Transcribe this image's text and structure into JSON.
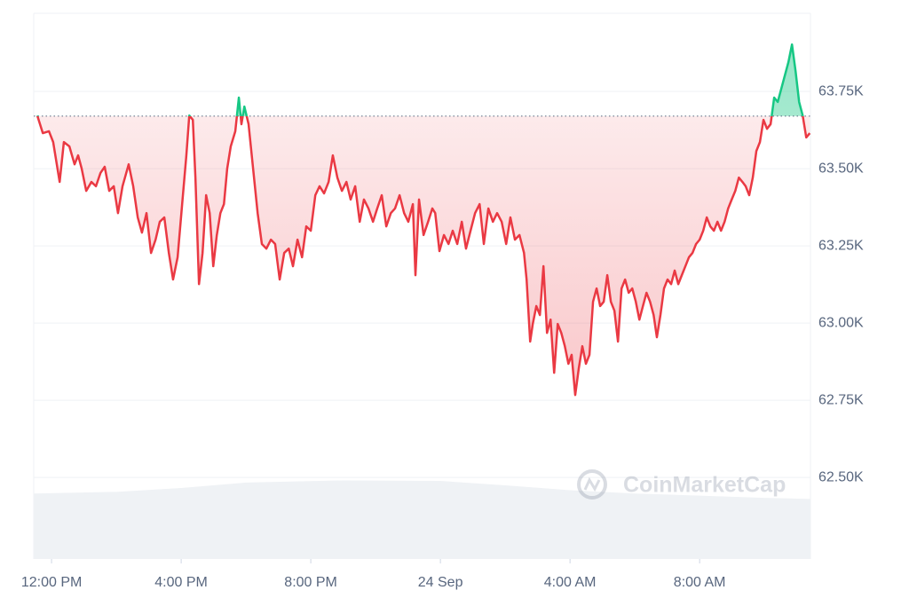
{
  "chart_data": {
    "type": "line",
    "watermark": "CoinMarketCap",
    "xlim": [
      -0.55,
      23.42
    ],
    "xticks": [
      {
        "value": 0,
        "label": "12:00 PM"
      },
      {
        "value": 4,
        "label": "4:00 PM"
      },
      {
        "value": 8,
        "label": "8:00 PM"
      },
      {
        "value": 12,
        "label": "24 Sep"
      },
      {
        "value": 16,
        "label": "4:00 AM"
      },
      {
        "value": 20,
        "label": "8:00 AM"
      }
    ],
    "ylim": [
      62236,
      64003
    ],
    "yticks": [
      {
        "value": 62500,
        "label": "62.50K"
      },
      {
        "value": 62750,
        "label": "62.75K"
      },
      {
        "value": 63000,
        "label": "63.00K"
      },
      {
        "value": 63250,
        "label": "63.25K"
      },
      {
        "value": 63500,
        "label": "63.50K"
      },
      {
        "value": 63750,
        "label": "63.75K"
      }
    ],
    "baseline": 63670,
    "grid": true,
    "color_up": "#16c784",
    "color_down": "#ea3943",
    "x": [
      -0.44,
      -0.27,
      -0.08,
      0.05,
      0.25,
      0.38,
      0.55,
      0.71,
      0.82,
      0.93,
      1.07,
      1.23,
      1.37,
      1.51,
      1.64,
      1.78,
      1.92,
      2.05,
      2.19,
      2.38,
      2.52,
      2.66,
      2.79,
      2.93,
      3.07,
      3.21,
      3.34,
      3.48,
      3.62,
      3.75,
      3.89,
      4.03,
      4.16,
      4.25,
      4.36,
      4.44,
      4.55,
      4.66,
      4.77,
      4.88,
      4.99,
      5.1,
      5.21,
      5.32,
      5.42,
      5.53,
      5.67,
      5.78,
      5.86,
      5.95,
      6.08,
      6.22,
      6.36,
      6.49,
      6.63,
      6.77,
      6.9,
      7.04,
      7.18,
      7.32,
      7.45,
      7.59,
      7.73,
      7.86,
      8.0,
      8.14,
      8.27,
      8.41,
      8.55,
      8.68,
      8.82,
      8.96,
      9.1,
      9.23,
      9.37,
      9.51,
      9.64,
      9.78,
      9.92,
      10.05,
      10.19,
      10.33,
      10.47,
      10.6,
      10.74,
      10.88,
      11.01,
      11.15,
      11.23,
      11.34,
      11.48,
      11.62,
      11.75,
      11.84,
      11.97,
      12.11,
      12.25,
      12.38,
      12.52,
      12.66,
      12.79,
      12.93,
      13.07,
      13.21,
      13.34,
      13.48,
      13.62,
      13.75,
      13.89,
      14.03,
      14.16,
      14.3,
      14.44,
      14.58,
      14.66,
      14.77,
      14.85,
      14.96,
      15.07,
      15.18,
      15.29,
      15.4,
      15.51,
      15.62,
      15.73,
      15.84,
      15.95,
      16.05,
      16.16,
      16.27,
      16.38,
      16.49,
      16.6,
      16.71,
      16.82,
      16.93,
      17.04,
      17.15,
      17.26,
      17.37,
      17.48,
      17.59,
      17.7,
      17.81,
      17.92,
      18.03,
      18.14,
      18.25,
      18.36,
      18.47,
      18.58,
      18.68,
      18.79,
      18.9,
      19.01,
      19.12,
      19.23,
      19.34,
      19.45,
      19.56,
      19.67,
      19.78,
      19.89,
      20.0,
      20.11,
      20.22,
      20.33,
      20.44,
      20.55,
      20.66,
      20.77,
      20.88,
      20.99,
      21.1,
      21.21,
      21.32,
      21.42,
      21.53,
      21.64,
      21.75,
      21.86,
      21.97,
      22.08,
      22.19,
      22.3,
      22.41,
      22.52,
      22.63,
      22.74,
      22.85,
      22.96,
      23.07,
      23.18,
      23.29,
      23.4
    ],
    "values": [
      63672,
      63615,
      63621,
      63586,
      63457,
      63586,
      63572,
      63514,
      63543,
      63500,
      63428,
      63457,
      63443,
      63486,
      63506,
      63428,
      63443,
      63356,
      63443,
      63514,
      63443,
      63342,
      63293,
      63356,
      63227,
      63270,
      63328,
      63342,
      63227,
      63141,
      63213,
      63385,
      63543,
      63672,
      63658,
      63471,
      63126,
      63227,
      63414,
      63356,
      63184,
      63285,
      63356,
      63385,
      63500,
      63572,
      63621,
      63730,
      63644,
      63701,
      63644,
      63500,
      63356,
      63256,
      63241,
      63270,
      63256,
      63141,
      63227,
      63241,
      63184,
      63270,
      63213,
      63313,
      63299,
      63414,
      63443,
      63420,
      63457,
      63543,
      63471,
      63428,
      63457,
      63400,
      63443,
      63328,
      63400,
      63371,
      63328,
      63371,
      63414,
      63313,
      63356,
      63371,
      63414,
      63356,
      63328,
      63385,
      63155,
      63400,
      63285,
      63328,
      63371,
      63356,
      63233,
      63285,
      63256,
      63299,
      63256,
      63328,
      63241,
      63299,
      63356,
      63385,
      63256,
      63371,
      63328,
      63356,
      63328,
      63256,
      63342,
      63270,
      63285,
      63227,
      63141,
      62940,
      62997,
      63055,
      63026,
      63184,
      62968,
      63011,
      62839,
      62997,
      62968,
      62925,
      62868,
      62897,
      62767,
      62853,
      62925,
      62868,
      62897,
      63069,
      63112,
      63055,
      63069,
      63155,
      63069,
      63040,
      62940,
      63112,
      63141,
      63098,
      63112,
      63069,
      63011,
      63055,
      63098,
      63069,
      63026,
      62954,
      63026,
      63112,
      63141,
      63126,
      63170,
      63126,
      63155,
      63184,
      63213,
      63227,
      63256,
      63270,
      63299,
      63342,
      63313,
      63299,
      63328,
      63299,
      63328,
      63371,
      63400,
      63428,
      63471,
      63457,
      63443,
      63414,
      63471,
      63557,
      63586,
      63658,
      63629,
      63644,
      63730,
      63716,
      63759,
      63802,
      63845,
      63902,
      63816,
      63716,
      63672,
      63601,
      63615
    ],
    "volume": {
      "x": [
        -0.55,
        2,
        4,
        6,
        9,
        12,
        14,
        16,
        18,
        20,
        22,
        23.42
      ],
      "values": [
        12,
        12.3,
        13,
        14,
        14.4,
        14.3,
        13.5,
        12.6,
        12,
        11.6,
        11.2,
        11
      ],
      "y2lim": [
        0,
        100
      ],
      "color": "#eff2f5"
    }
  }
}
